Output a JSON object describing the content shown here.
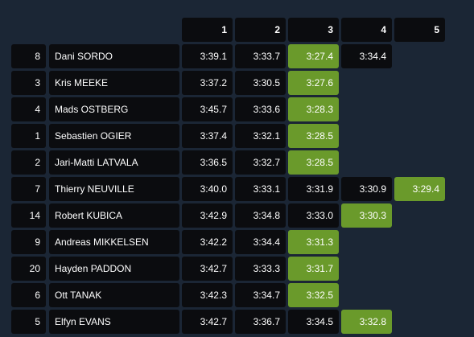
{
  "table": {
    "columns": [
      "1",
      "2",
      "3",
      "4",
      "5"
    ],
    "rows": [
      {
        "number": 8,
        "name": "Dani SORDO",
        "times": [
          "3:39.1",
          "3:33.7",
          "3:27.4",
          "3:34.4"
        ],
        "highlight": 2
      },
      {
        "number": 3,
        "name": "Kris MEEKE",
        "times": [
          "3:37.2",
          "3:30.5",
          "3:27.6"
        ],
        "highlight": 2
      },
      {
        "number": 4,
        "name": "Mads OSTBERG",
        "times": [
          "3:45.7",
          "3:33.6",
          "3:28.3"
        ],
        "highlight": 2
      },
      {
        "number": 1,
        "name": "Sebastien OGIER",
        "times": [
          "3:37.4",
          "3:32.1",
          "3:28.5"
        ],
        "highlight": 2
      },
      {
        "number": 2,
        "name": "Jari-Matti LATVALA",
        "times": [
          "3:36.5",
          "3:32.7",
          "3:28.5"
        ],
        "highlight": 2
      },
      {
        "number": 7,
        "name": "Thierry NEUVILLE",
        "times": [
          "3:40.0",
          "3:33.1",
          "3:31.9",
          "3:30.9",
          "3:29.4"
        ],
        "highlight": 4
      },
      {
        "number": 14,
        "name": "Robert KUBICA",
        "times": [
          "3:42.9",
          "3:34.8",
          "3:33.0",
          "3:30.3"
        ],
        "highlight": 3
      },
      {
        "number": 9,
        "name": "Andreas MIKKELSEN",
        "times": [
          "3:42.2",
          "3:34.4",
          "3:31.3"
        ],
        "highlight": 2
      },
      {
        "number": 20,
        "name": "Hayden PADDON",
        "times": [
          "3:42.7",
          "3:33.3",
          "3:31.7"
        ],
        "highlight": 2
      },
      {
        "number": 6,
        "name": "Ott TANAK",
        "times": [
          "3:42.3",
          "3:34.7",
          "3:32.5"
        ],
        "highlight": 2
      },
      {
        "number": 5,
        "name": "Elfyn EVANS",
        "times": [
          "3:42.7",
          "3:36.7",
          "3:34.5",
          "3:32.8"
        ],
        "highlight": 3
      }
    ]
  }
}
